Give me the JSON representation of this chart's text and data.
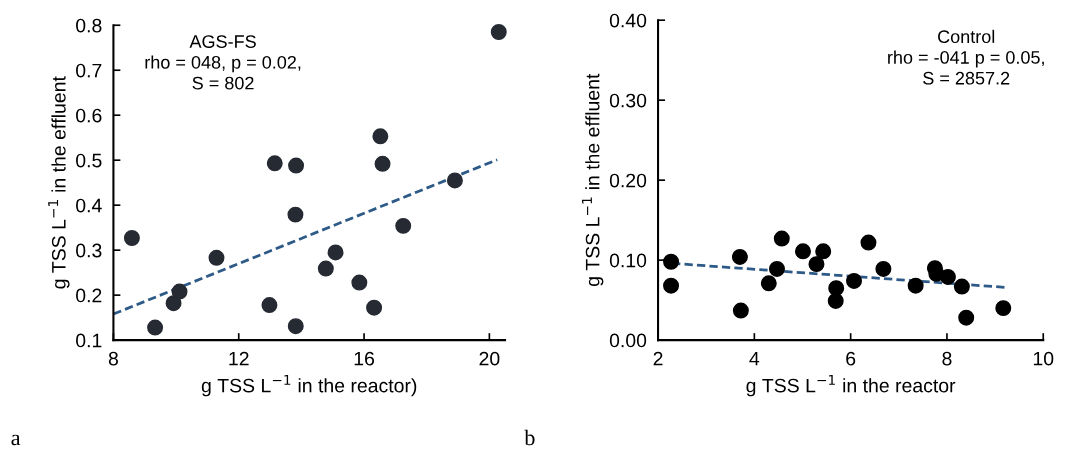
{
  "chart_data": [
    {
      "type": "scatter",
      "xlabel": "g TSS L$^{−1}$ in the reactor)",
      "ylabel": "g TSS L$^{−1}$ in the effluent",
      "xlim": [
        8,
        20.5
      ],
      "xticks": [
        8,
        12,
        16,
        20
      ],
      "ylim": [
        0.1,
        0.8
      ],
      "yticks": [
        0.1,
        0.2,
        0.3,
        0.4,
        0.5,
        0.6,
        0.7,
        0.8
      ],
      "grid": false,
      "legend": false,
      "marker": "circle",
      "annotations": [
        "AGS-FS\nrho = 048, p = 0.02,\nS = 802",
        "a"
      ],
      "series": [
        {
          "color": "#262a33",
          "x": [
            8.59,
            9.33,
            9.92,
            10.11,
            11.29,
            12.98,
            13.15,
            13.81,
            13.83,
            13.82,
            14.78,
            15.09,
            15.85,
            16.32,
            16.52,
            16.59,
            17.25,
            18.9,
            20.3
          ],
          "values": [
            0.327,
            0.128,
            0.182,
            0.208,
            0.283,
            0.178,
            0.493,
            0.379,
            0.488,
            0.131,
            0.259,
            0.295,
            0.228,
            0.172,
            0.553,
            0.492,
            0.354,
            0.455,
            0.785
          ]
        },
        {
          "type": "line",
          "line_style": "dashed",
          "marker": "none",
          "color": "#2e5a87",
          "x": [
            8,
            20.25
          ],
          "values": [
            0.158,
            0.501
          ]
        }
      ]
    },
    {
      "type": "scatter",
      "xlabel": "g TSS L$^{−1}$ in the reactor",
      "ylabel": "g TSS L$^{−1}$ in the effluent",
      "xlim": [
        2,
        10
      ],
      "xticks": [
        2,
        4,
        6,
        8,
        10
      ],
      "ylim": [
        0,
        0.4
      ],
      "yticks": [
        {
          "value": 0,
          "label": "0.00"
        },
        {
          "value": 0.1,
          "label": "0.10"
        },
        {
          "value": 0.2,
          "label": "0.20"
        },
        {
          "value": 0.3,
          "label": "0.30"
        },
        {
          "value": 0.4,
          "label": "0.40"
        }
      ],
      "grid": false,
      "legend": false,
      "marker": "circle",
      "annotations": [
        "Control\nrho = -041 p = 0.05,\nS = 2857.2",
        "b"
      ],
      "series": [
        {
          "color": "#000000",
          "x": [
            2.27,
            2.27,
            3.7,
            3.72,
            4.3,
            4.47,
            4.57,
            5.01,
            5.29,
            5.43,
            5.7,
            5.69,
            6.07,
            6.37,
            6.68,
            7.35,
            7.75,
            7.78,
            8.02,
            8.31,
            8.4,
            9.17
          ],
          "values": [
            0.098,
            0.068,
            0.104,
            0.037,
            0.071,
            0.089,
            0.127,
            0.111,
            0.095,
            0.111,
            0.065,
            0.049,
            0.074,
            0.122,
            0.089,
            0.068,
            0.09,
            0.083,
            0.079,
            0.067,
            0.028,
            0.04
          ]
        },
        {
          "type": "line",
          "line_style": "dashed",
          "marker": "none",
          "color": "#2e5a87",
          "x": [
            2.29,
            9.2
          ],
          "values": [
            0.096,
            0.066
          ]
        }
      ]
    }
  ]
}
